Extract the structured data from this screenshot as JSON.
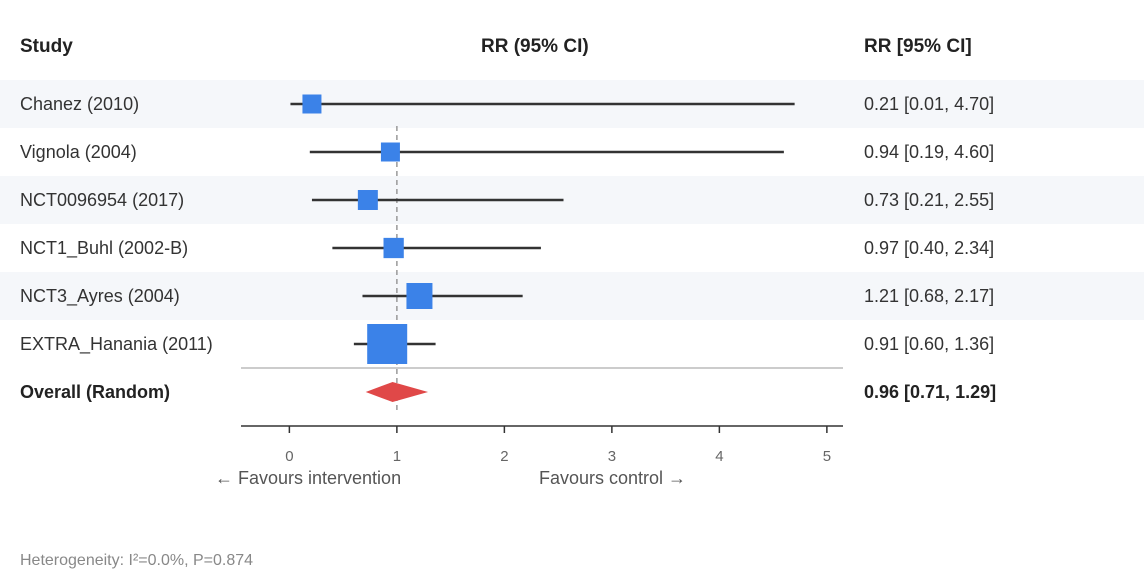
{
  "headers": {
    "study": "Study",
    "plot": "RR (95% CI)",
    "ci": "RR [95% CI]"
  },
  "chart_data": {
    "type": "forest",
    "xlim": [
      -0.45,
      5.15
    ],
    "xticks": [
      0,
      1,
      2,
      3,
      4,
      5
    ],
    "reference_line": 1,
    "studies": [
      {
        "name": "Chanez (2010)",
        "rr": 0.21,
        "lo": 0.01,
        "hi": 4.7,
        "label": "0.21 [0.01, 4.70]",
        "weight": 1
      },
      {
        "name": "Vignola (2004)",
        "rr": 0.94,
        "lo": 0.19,
        "hi": 4.6,
        "label": "0.94 [0.19, 4.60]",
        "weight": 1
      },
      {
        "name": "NCT0096954 (2017)",
        "rr": 0.73,
        "lo": 0.21,
        "hi": 2.55,
        "label": "0.73 [0.21, 2.55]",
        "weight": 1.3
      },
      {
        "name": "NCT1_Buhl (2002-B)",
        "rr": 0.97,
        "lo": 0.4,
        "hi": 2.34,
        "label": "0.97 [0.40, 2.34]",
        "weight": 1.4
      },
      {
        "name": "NCT3_Ayres (2004)",
        "rr": 1.21,
        "lo": 0.68,
        "hi": 2.17,
        "label": "1.21 [0.68, 2.17]",
        "weight": 4
      },
      {
        "name": "EXTRA_Hanania (2011)",
        "rr": 0.91,
        "lo": 0.6,
        "hi": 1.36,
        "label": "0.91 [0.60, 1.36]",
        "weight": 16
      }
    ],
    "overall": {
      "name": "Overall (Random)",
      "rr": 0.96,
      "lo": 0.71,
      "hi": 1.29,
      "label": "0.96 [0.71, 1.29]"
    },
    "favours_left": "← Favours intervention",
    "favours_right": "Favours control →",
    "colors": {
      "square": "#3b82e8",
      "diamond": "#e04848",
      "line": "#333333",
      "ref": "#999999"
    }
  },
  "footer": {
    "heterogeneity": "Heterogeneity: I²=0.0%, P=0.874"
  }
}
